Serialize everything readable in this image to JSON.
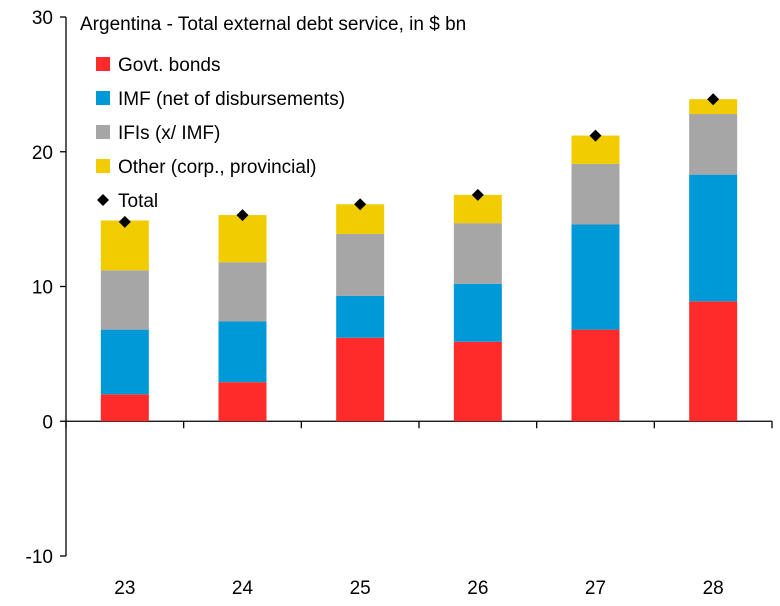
{
  "chart_data": {
    "type": "bar",
    "stacked": true,
    "title": "Argentina - Total external debt service, in $ bn",
    "xlabel": "",
    "ylabel": "",
    "categories": [
      "23",
      "24",
      "25",
      "26",
      "27",
      "28"
    ],
    "ylim": [
      -10,
      30
    ],
    "yticks": [
      -10,
      0,
      10,
      20,
      30
    ],
    "grid": false,
    "legend_position": "top-left",
    "series": [
      {
        "name": "Govt. bonds",
        "color": "#ff2b2b",
        "values": [
          2.0,
          2.9,
          6.2,
          5.9,
          6.8,
          8.9
        ]
      },
      {
        "name": "IMF (net of disbursements)",
        "color": "#0099d8",
        "values": [
          4.8,
          4.5,
          3.1,
          4.3,
          7.8,
          9.4
        ]
      },
      {
        "name": "IFIs (x/ IMF)",
        "color": "#a6a6a6",
        "values": [
          4.4,
          4.4,
          4.6,
          4.5,
          4.5,
          4.5
        ]
      },
      {
        "name": "Other (corp., provincial)",
        "color": "#f0cc00",
        "values": [
          3.7,
          3.5,
          2.2,
          2.1,
          2.1,
          1.1
        ]
      }
    ],
    "total": {
      "name": "Total",
      "color": "#000000",
      "values": [
        14.8,
        15.3,
        16.1,
        16.8,
        21.2,
        23.9
      ]
    }
  }
}
